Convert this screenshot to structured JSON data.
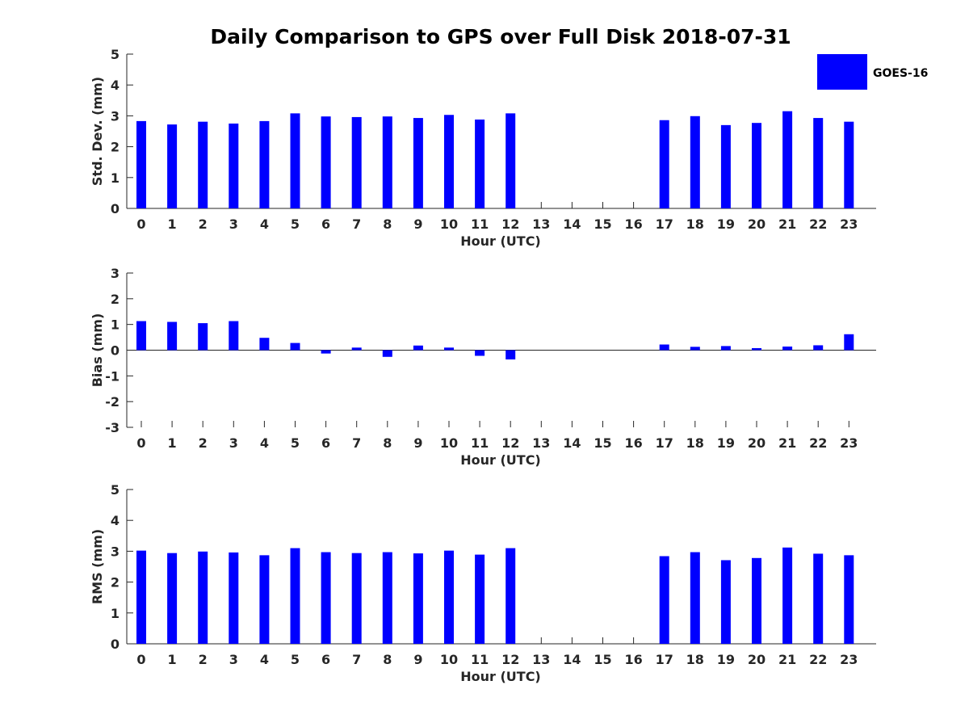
{
  "chart_data": {
    "title": "Daily Comparison to GPS over Full Disk 2018-07-31",
    "legend": {
      "label": "GOES-16",
      "color": "#0000ff",
      "placement": "top-right"
    },
    "panels": [
      {
        "id": "std",
        "type": "bar",
        "ylabel": "Std. Dev. (mm)",
        "xlabel": "Hour (UTC)",
        "ylim": [
          0,
          5
        ],
        "yticks": [
          0,
          1,
          2,
          3,
          4,
          5
        ],
        "categories": [
          0,
          1,
          2,
          3,
          4,
          5,
          6,
          7,
          8,
          9,
          10,
          11,
          12,
          13,
          14,
          15,
          16,
          17,
          18,
          19,
          20,
          21,
          22,
          23
        ],
        "values": [
          2.83,
          2.72,
          2.81,
          2.75,
          2.83,
          3.08,
          2.98,
          2.96,
          2.98,
          2.93,
          3.03,
          2.88,
          3.08,
          null,
          null,
          null,
          null,
          2.86,
          2.99,
          2.7,
          2.77,
          3.15,
          2.93,
          2.81
        ]
      },
      {
        "id": "bias",
        "type": "bar",
        "ylabel": "Bias (mm)",
        "xlabel": "Hour (UTC)",
        "ylim": [
          -3,
          3
        ],
        "yticks": [
          -3,
          -2,
          -1,
          0,
          1,
          2,
          3
        ],
        "categories": [
          0,
          1,
          2,
          3,
          4,
          5,
          6,
          7,
          8,
          9,
          10,
          11,
          12,
          13,
          14,
          15,
          16,
          17,
          18,
          19,
          20,
          21,
          22,
          23
        ],
        "values": [
          1.13,
          1.1,
          1.05,
          1.13,
          0.48,
          0.28,
          -0.13,
          0.1,
          -0.26,
          0.18,
          0.1,
          -0.22,
          -0.36,
          null,
          null,
          null,
          null,
          0.22,
          0.13,
          0.16,
          0.08,
          0.14,
          0.19,
          0.62
        ]
      },
      {
        "id": "rms",
        "type": "bar",
        "ylabel": "RMS (mm)",
        "xlabel": "Hour (UTC)",
        "ylim": [
          0,
          5
        ],
        "yticks": [
          0,
          1,
          2,
          3,
          4,
          5
        ],
        "categories": [
          0,
          1,
          2,
          3,
          4,
          5,
          6,
          7,
          8,
          9,
          10,
          11,
          12,
          13,
          14,
          15,
          16,
          17,
          18,
          19,
          20,
          21,
          22,
          23
        ],
        "values": [
          3.02,
          2.94,
          2.99,
          2.96,
          2.87,
          3.1,
          2.97,
          2.94,
          2.97,
          2.93,
          3.02,
          2.89,
          3.1,
          null,
          null,
          null,
          null,
          2.84,
          2.97,
          2.71,
          2.78,
          3.12,
          2.92,
          2.87
        ]
      }
    ]
  }
}
